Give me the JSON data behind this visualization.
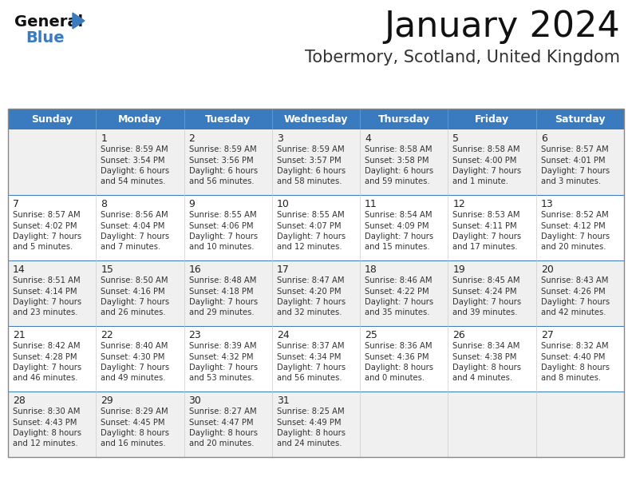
{
  "title": "January 2024",
  "subtitle": "Tobermory, Scotland, United Kingdom",
  "header_color": "#3a7bbf",
  "header_text_color": "#ffffff",
  "days_of_week": [
    "Sunday",
    "Monday",
    "Tuesday",
    "Wednesday",
    "Thursday",
    "Friday",
    "Saturday"
  ],
  "bg_color": "#ffffff",
  "row_even_color": "#f0f0f0",
  "row_odd_color": "#ffffff",
  "cell_text_color": "#333333",
  "day_num_color": "#222222",
  "border_color": "#3a7bbf",
  "inner_border_color": "#3a7bbf",
  "calendar": [
    [
      "",
      "1",
      "2",
      "3",
      "4",
      "5",
      "6"
    ],
    [
      "7",
      "8",
      "9",
      "10",
      "11",
      "12",
      "13"
    ],
    [
      "14",
      "15",
      "16",
      "17",
      "18",
      "19",
      "20"
    ],
    [
      "21",
      "22",
      "23",
      "24",
      "25",
      "26",
      "27"
    ],
    [
      "28",
      "29",
      "30",
      "31",
      "",
      "",
      ""
    ]
  ],
  "cell_data": {
    "1": [
      "Sunrise: 8:59 AM",
      "Sunset: 3:54 PM",
      "Daylight: 6 hours",
      "and 54 minutes."
    ],
    "2": [
      "Sunrise: 8:59 AM",
      "Sunset: 3:56 PM",
      "Daylight: 6 hours",
      "and 56 minutes."
    ],
    "3": [
      "Sunrise: 8:59 AM",
      "Sunset: 3:57 PM",
      "Daylight: 6 hours",
      "and 58 minutes."
    ],
    "4": [
      "Sunrise: 8:58 AM",
      "Sunset: 3:58 PM",
      "Daylight: 6 hours",
      "and 59 minutes."
    ],
    "5": [
      "Sunrise: 8:58 AM",
      "Sunset: 4:00 PM",
      "Daylight: 7 hours",
      "and 1 minute."
    ],
    "6": [
      "Sunrise: 8:57 AM",
      "Sunset: 4:01 PM",
      "Daylight: 7 hours",
      "and 3 minutes."
    ],
    "7": [
      "Sunrise: 8:57 AM",
      "Sunset: 4:02 PM",
      "Daylight: 7 hours",
      "and 5 minutes."
    ],
    "8": [
      "Sunrise: 8:56 AM",
      "Sunset: 4:04 PM",
      "Daylight: 7 hours",
      "and 7 minutes."
    ],
    "9": [
      "Sunrise: 8:55 AM",
      "Sunset: 4:06 PM",
      "Daylight: 7 hours",
      "and 10 minutes."
    ],
    "10": [
      "Sunrise: 8:55 AM",
      "Sunset: 4:07 PM",
      "Daylight: 7 hours",
      "and 12 minutes."
    ],
    "11": [
      "Sunrise: 8:54 AM",
      "Sunset: 4:09 PM",
      "Daylight: 7 hours",
      "and 15 minutes."
    ],
    "12": [
      "Sunrise: 8:53 AM",
      "Sunset: 4:11 PM",
      "Daylight: 7 hours",
      "and 17 minutes."
    ],
    "13": [
      "Sunrise: 8:52 AM",
      "Sunset: 4:12 PM",
      "Daylight: 7 hours",
      "and 20 minutes."
    ],
    "14": [
      "Sunrise: 8:51 AM",
      "Sunset: 4:14 PM",
      "Daylight: 7 hours",
      "and 23 minutes."
    ],
    "15": [
      "Sunrise: 8:50 AM",
      "Sunset: 4:16 PM",
      "Daylight: 7 hours",
      "and 26 minutes."
    ],
    "16": [
      "Sunrise: 8:48 AM",
      "Sunset: 4:18 PM",
      "Daylight: 7 hours",
      "and 29 minutes."
    ],
    "17": [
      "Sunrise: 8:47 AM",
      "Sunset: 4:20 PM",
      "Daylight: 7 hours",
      "and 32 minutes."
    ],
    "18": [
      "Sunrise: 8:46 AM",
      "Sunset: 4:22 PM",
      "Daylight: 7 hours",
      "and 35 minutes."
    ],
    "19": [
      "Sunrise: 8:45 AM",
      "Sunset: 4:24 PM",
      "Daylight: 7 hours",
      "and 39 minutes."
    ],
    "20": [
      "Sunrise: 8:43 AM",
      "Sunset: 4:26 PM",
      "Daylight: 7 hours",
      "and 42 minutes."
    ],
    "21": [
      "Sunrise: 8:42 AM",
      "Sunset: 4:28 PM",
      "Daylight: 7 hours",
      "and 46 minutes."
    ],
    "22": [
      "Sunrise: 8:40 AM",
      "Sunset: 4:30 PM",
      "Daylight: 7 hours",
      "and 49 minutes."
    ],
    "23": [
      "Sunrise: 8:39 AM",
      "Sunset: 4:32 PM",
      "Daylight: 7 hours",
      "and 53 minutes."
    ],
    "24": [
      "Sunrise: 8:37 AM",
      "Sunset: 4:34 PM",
      "Daylight: 7 hours",
      "and 56 minutes."
    ],
    "25": [
      "Sunrise: 8:36 AM",
      "Sunset: 4:36 PM",
      "Daylight: 8 hours",
      "and 0 minutes."
    ],
    "26": [
      "Sunrise: 8:34 AM",
      "Sunset: 4:38 PM",
      "Daylight: 8 hours",
      "and 4 minutes."
    ],
    "27": [
      "Sunrise: 8:32 AM",
      "Sunset: 4:40 PM",
      "Daylight: 8 hours",
      "and 8 minutes."
    ],
    "28": [
      "Sunrise: 8:30 AM",
      "Sunset: 4:43 PM",
      "Daylight: 8 hours",
      "and 12 minutes."
    ],
    "29": [
      "Sunrise: 8:29 AM",
      "Sunset: 4:45 PM",
      "Daylight: 8 hours",
      "and 16 minutes."
    ],
    "30": [
      "Sunrise: 8:27 AM",
      "Sunset: 4:47 PM",
      "Daylight: 8 hours",
      "and 20 minutes."
    ],
    "31": [
      "Sunrise: 8:25 AM",
      "Sunset: 4:49 PM",
      "Daylight: 8 hours",
      "and 24 minutes."
    ]
  }
}
